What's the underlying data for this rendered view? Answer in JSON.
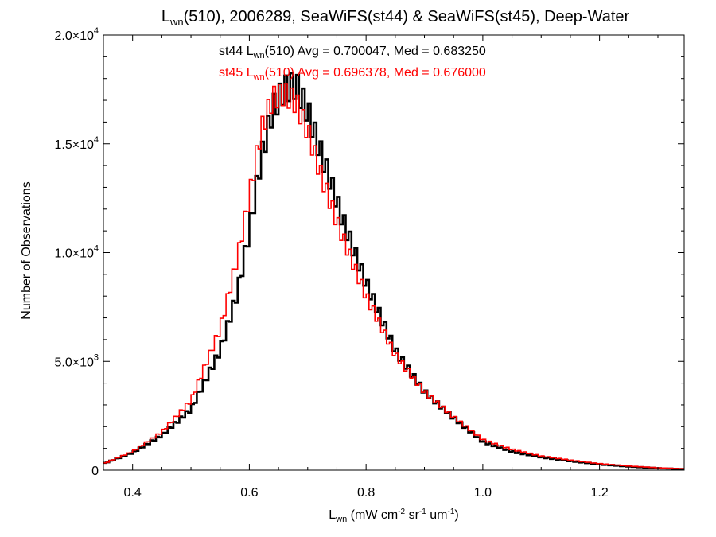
{
  "chart_data": {
    "type": "line",
    "title": {
      "main": "L",
      "sub": "wn",
      "rest": "(510), 2006289, SeaWiFS(st44) & SeaWiFS(st45), Deep-Water"
    },
    "ylabel": "Number of Observations",
    "xlabel": {
      "pre": "L",
      "sub": "wn",
      "parts": [
        {
          "t": " (mW cm"
        },
        {
          "sup": "-2"
        },
        {
          "t": " sr"
        },
        {
          "sup": "-1"
        },
        {
          "t": " um"
        },
        {
          "sup": "-1"
        },
        {
          "t": ")"
        }
      ]
    },
    "xlim": [
      0.35,
      1.345
    ],
    "ylim": [
      0,
      20000
    ],
    "x_ticks": [
      0.4,
      0.6,
      0.8,
      1.0,
      1.2
    ],
    "x_tick_labels": [
      "0.4",
      "0.6",
      "0.8",
      "1.0",
      "1.2"
    ],
    "y_ticks": [
      0,
      5000,
      10000,
      15000,
      20000
    ],
    "y_tick_labels": [
      {
        "mant": "0",
        "exp": ""
      },
      {
        "mant": "5.0×10",
        "exp": "3"
      },
      {
        "mant": "1.0×10",
        "exp": "4"
      },
      {
        "mant": "1.5×10",
        "exp": "4"
      },
      {
        "mant": "2.0×10",
        "exp": "4"
      }
    ],
    "series": [
      {
        "name": "st44",
        "color": "#000000",
        "label": {
          "pre": "st44 L",
          "sub": "wn",
          "post": "(510) Avg = 0.700047, Med = 0.683250"
        },
        "x": [
          0.35,
          0.4,
          0.45,
          0.5,
          0.55,
          0.58,
          0.6,
          0.62,
          0.64,
          0.66,
          0.68,
          0.7,
          0.72,
          0.74,
          0.76,
          0.8,
          0.85,
          0.9,
          0.95,
          1.0,
          1.05,
          1.1,
          1.15,
          1.2,
          1.25,
          1.3,
          1.345
        ],
        "y": [
          300,
          800,
          1600,
          2800,
          5500,
          8200,
          11000,
          14300,
          16600,
          17500,
          17700,
          16500,
          14800,
          13200,
          11500,
          8600,
          5500,
          3600,
          2400,
          1300,
          850,
          600,
          420,
          270,
          170,
          90,
          50
        ]
      },
      {
        "name": "st45",
        "color": "#ff0000",
        "label": {
          "pre": "st45 L",
          "sub": "wn",
          "post": "(510) Avg = 0.696378, Med = 0.676000"
        },
        "x": [
          0.35,
          0.4,
          0.45,
          0.5,
          0.55,
          0.58,
          0.6,
          0.62,
          0.64,
          0.66,
          0.68,
          0.7,
          0.72,
          0.74,
          0.76,
          0.8,
          0.85,
          0.9,
          0.95,
          1.0,
          1.05,
          1.1,
          1.15,
          1.2,
          1.25,
          1.3,
          1.345
        ],
        "y": [
          300,
          850,
          1750,
          3200,
          6500,
          9800,
          12600,
          15600,
          17100,
          17300,
          16900,
          15600,
          13800,
          12200,
          10700,
          8000,
          5300,
          3600,
          2450,
          1400,
          950,
          650,
          460,
          300,
          190,
          110,
          60
        ]
      }
    ]
  }
}
